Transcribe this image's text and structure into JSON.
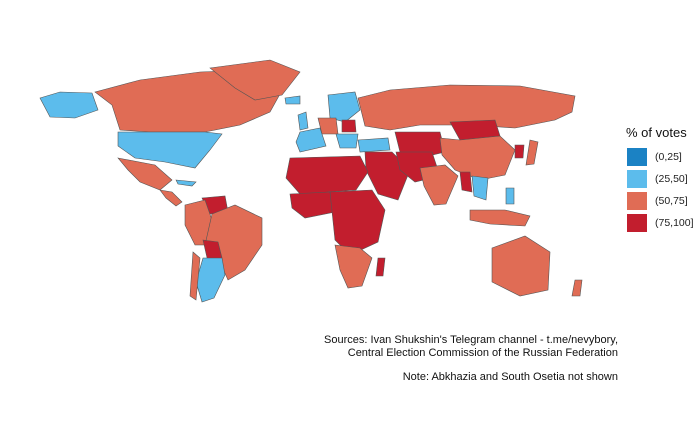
{
  "legend": {
    "title": "% of votes",
    "items": [
      {
        "label": "(0,25]",
        "color": "#1b82c4"
      },
      {
        "label": "(25,50]",
        "color": "#5cbcec"
      },
      {
        "label": "(50,75]",
        "color": "#e06c55"
      },
      {
        "label": "(75,100]",
        "color": "#c21e2e"
      }
    ]
  },
  "caption": {
    "sources_line1": "Sources: Ivan Shukshin's Telegram channel - t.me/nevybory,",
    "sources_line2": "Central Election Commission of the Russian Federation",
    "note": "Note: Abkhazia and South Osetia not shown"
  }
}
